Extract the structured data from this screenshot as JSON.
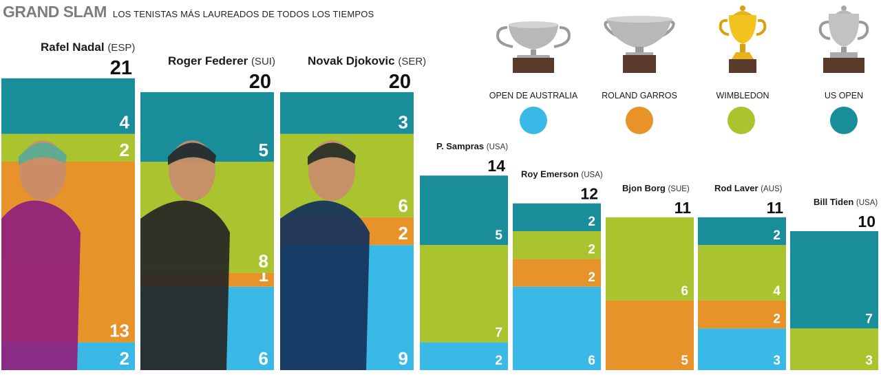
{
  "header": {
    "title": "GRAND SLAM",
    "subtitle": "LOS TENISTAS MÁS LAUREADOS DE TODOS LOS TIEMPOS"
  },
  "colors": {
    "Open de Australia": "#3ab8e6",
    "Roland Garros": "#e8932a",
    "Wimbledon": "#a9c42f",
    "US Open": "#1a8d9a"
  },
  "legend": [
    {
      "label": "OPEN DE AUSTRALIA",
      "series": "Open de Australia",
      "icon": "trophy-icon"
    },
    {
      "label": "ROLAND GARROS",
      "series": "Roland Garros",
      "icon": "cup-icon"
    },
    {
      "label": "WIMBLEDON",
      "series": "Wimbledon",
      "icon": "gold-trophy-icon"
    },
    {
      "label": "US OPEN",
      "series": "US Open",
      "icon": "trophy-icon"
    }
  ],
  "chart_data": {
    "type": "bar",
    "stacked": true,
    "categories": [
      {
        "name": "Rafel Nadal",
        "country": "(ESP)"
      },
      {
        "name": "Roger Federer",
        "country": "(SUI)"
      },
      {
        "name": "Novak Djokovic",
        "country": "(SER)"
      },
      {
        "name": "P. Sampras",
        "country": "(USA)"
      },
      {
        "name": "Roy Emerson",
        "country": "(USA)"
      },
      {
        "name": "Bjon Borg",
        "country": "(SUE)"
      },
      {
        "name": "Rod Laver",
        "country": "(AUS)"
      },
      {
        "name": "Bill Tiden",
        "country": "(USA)"
      }
    ],
    "totals": [
      21,
      20,
      20,
      14,
      12,
      11,
      11,
      10
    ],
    "series": [
      {
        "name": "Open de Australia",
        "values": [
          2,
          6,
          9,
          2,
          6,
          0,
          3,
          0
        ]
      },
      {
        "name": "Roland Garros",
        "values": [
          13,
          1,
          2,
          0,
          2,
          5,
          2,
          0
        ]
      },
      {
        "name": "Wimbledon",
        "values": [
          2,
          8,
          6,
          7,
          2,
          6,
          4,
          3
        ]
      },
      {
        "name": "US Open",
        "values": [
          4,
          5,
          3,
          5,
          2,
          0,
          2,
          7
        ]
      }
    ],
    "photo_players": [
      "Rafel Nadal",
      "Roger Federer",
      "Novak Djokovic"
    ]
  }
}
